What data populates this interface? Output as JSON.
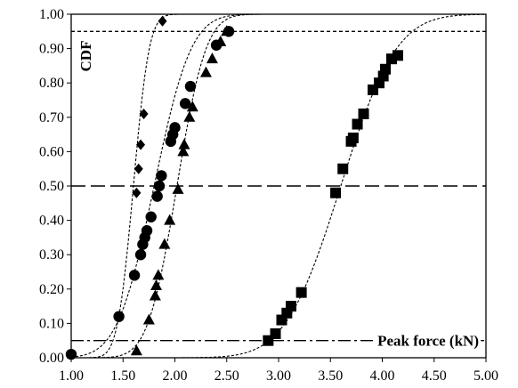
{
  "chart_data": {
    "type": "scatter",
    "ylabel": "CDF",
    "xlabel": "Peak force (kN)",
    "xlim": [
      1.0,
      5.0
    ],
    "ylim": [
      0.0,
      1.0
    ],
    "x_ticks": [
      "1.00",
      "1.50",
      "2.00",
      "2.50",
      "3.00",
      "3.50",
      "4.00",
      "4.50",
      "5.00"
    ],
    "y_ticks": [
      "0.00",
      "0.10",
      "0.20",
      "0.30",
      "0.40",
      "0.50",
      "0.60",
      "0.70",
      "0.80",
      "0.90",
      "1.00"
    ],
    "grid": false,
    "reference_lines": [
      {
        "y": 0.95,
        "style": "short-dash"
      },
      {
        "y": 0.5,
        "style": "long-dash"
      },
      {
        "y": 0.05,
        "style": "dash-dot"
      }
    ],
    "series": [
      {
        "marker": "diamond",
        "fit": {
          "mean": 1.6,
          "sd": 0.12
        },
        "points": [
          {
            "x": 1.63,
            "y": 0.48
          },
          {
            "x": 1.65,
            "y": 0.55
          },
          {
            "x": 1.67,
            "y": 0.62
          },
          {
            "x": 1.7,
            "y": 0.71
          },
          {
            "x": 1.88,
            "y": 0.98
          }
        ]
      },
      {
        "marker": "circle",
        "fit": {
          "mean": 1.8,
          "sd": 0.28
        },
        "points": [
          {
            "x": 1.0,
            "y": 0.01
          },
          {
            "x": 1.46,
            "y": 0.12
          },
          {
            "x": 1.61,
            "y": 0.24
          },
          {
            "x": 1.67,
            "y": 0.3
          },
          {
            "x": 1.69,
            "y": 0.33
          },
          {
            "x": 1.71,
            "y": 0.35
          },
          {
            "x": 1.73,
            "y": 0.37
          },
          {
            "x": 1.77,
            "y": 0.41
          },
          {
            "x": 1.83,
            "y": 0.47
          },
          {
            "x": 1.85,
            "y": 0.5
          },
          {
            "x": 1.87,
            "y": 0.53
          },
          {
            "x": 1.96,
            "y": 0.63
          },
          {
            "x": 1.98,
            "y": 0.65
          },
          {
            "x": 2.0,
            "y": 0.67
          },
          {
            "x": 2.1,
            "y": 0.74
          },
          {
            "x": 2.15,
            "y": 0.79
          },
          {
            "x": 2.4,
            "y": 0.91
          },
          {
            "x": 2.52,
            "y": 0.95
          }
        ]
      },
      {
        "marker": "triangle",
        "fit": {
          "mean": 2.02,
          "sd": 0.22
        },
        "points": [
          {
            "x": 1.63,
            "y": 0.02
          },
          {
            "x": 1.75,
            "y": 0.11
          },
          {
            "x": 1.81,
            "y": 0.18
          },
          {
            "x": 1.82,
            "y": 0.21
          },
          {
            "x": 1.84,
            "y": 0.24
          },
          {
            "x": 1.9,
            "y": 0.33
          },
          {
            "x": 1.95,
            "y": 0.4
          },
          {
            "x": 2.03,
            "y": 0.49
          },
          {
            "x": 2.08,
            "y": 0.6
          },
          {
            "x": 2.09,
            "y": 0.62
          },
          {
            "x": 2.14,
            "y": 0.7
          },
          {
            "x": 2.17,
            "y": 0.73
          },
          {
            "x": 2.3,
            "y": 0.83
          },
          {
            "x": 2.36,
            "y": 0.87
          },
          {
            "x": 2.44,
            "y": 0.92
          },
          {
            "x": 2.5,
            "y": 0.95
          }
        ]
      },
      {
        "marker": "square",
        "fit": {
          "mean": 3.6,
          "sd": 0.42
        },
        "points": [
          {
            "x": 2.9,
            "y": 0.05
          },
          {
            "x": 2.97,
            "y": 0.07
          },
          {
            "x": 3.03,
            "y": 0.11
          },
          {
            "x": 3.08,
            "y": 0.13
          },
          {
            "x": 3.12,
            "y": 0.15
          },
          {
            "x": 3.22,
            "y": 0.19
          },
          {
            "x": 3.55,
            "y": 0.48
          },
          {
            "x": 3.62,
            "y": 0.55
          },
          {
            "x": 3.7,
            "y": 0.63
          },
          {
            "x": 3.72,
            "y": 0.64
          },
          {
            "x": 3.76,
            "y": 0.68
          },
          {
            "x": 3.82,
            "y": 0.71
          },
          {
            "x": 3.91,
            "y": 0.78
          },
          {
            "x": 3.97,
            "y": 0.8
          },
          {
            "x": 4.01,
            "y": 0.82
          },
          {
            "x": 4.03,
            "y": 0.84
          },
          {
            "x": 4.09,
            "y": 0.87
          },
          {
            "x": 4.15,
            "y": 0.88
          }
        ]
      }
    ]
  }
}
